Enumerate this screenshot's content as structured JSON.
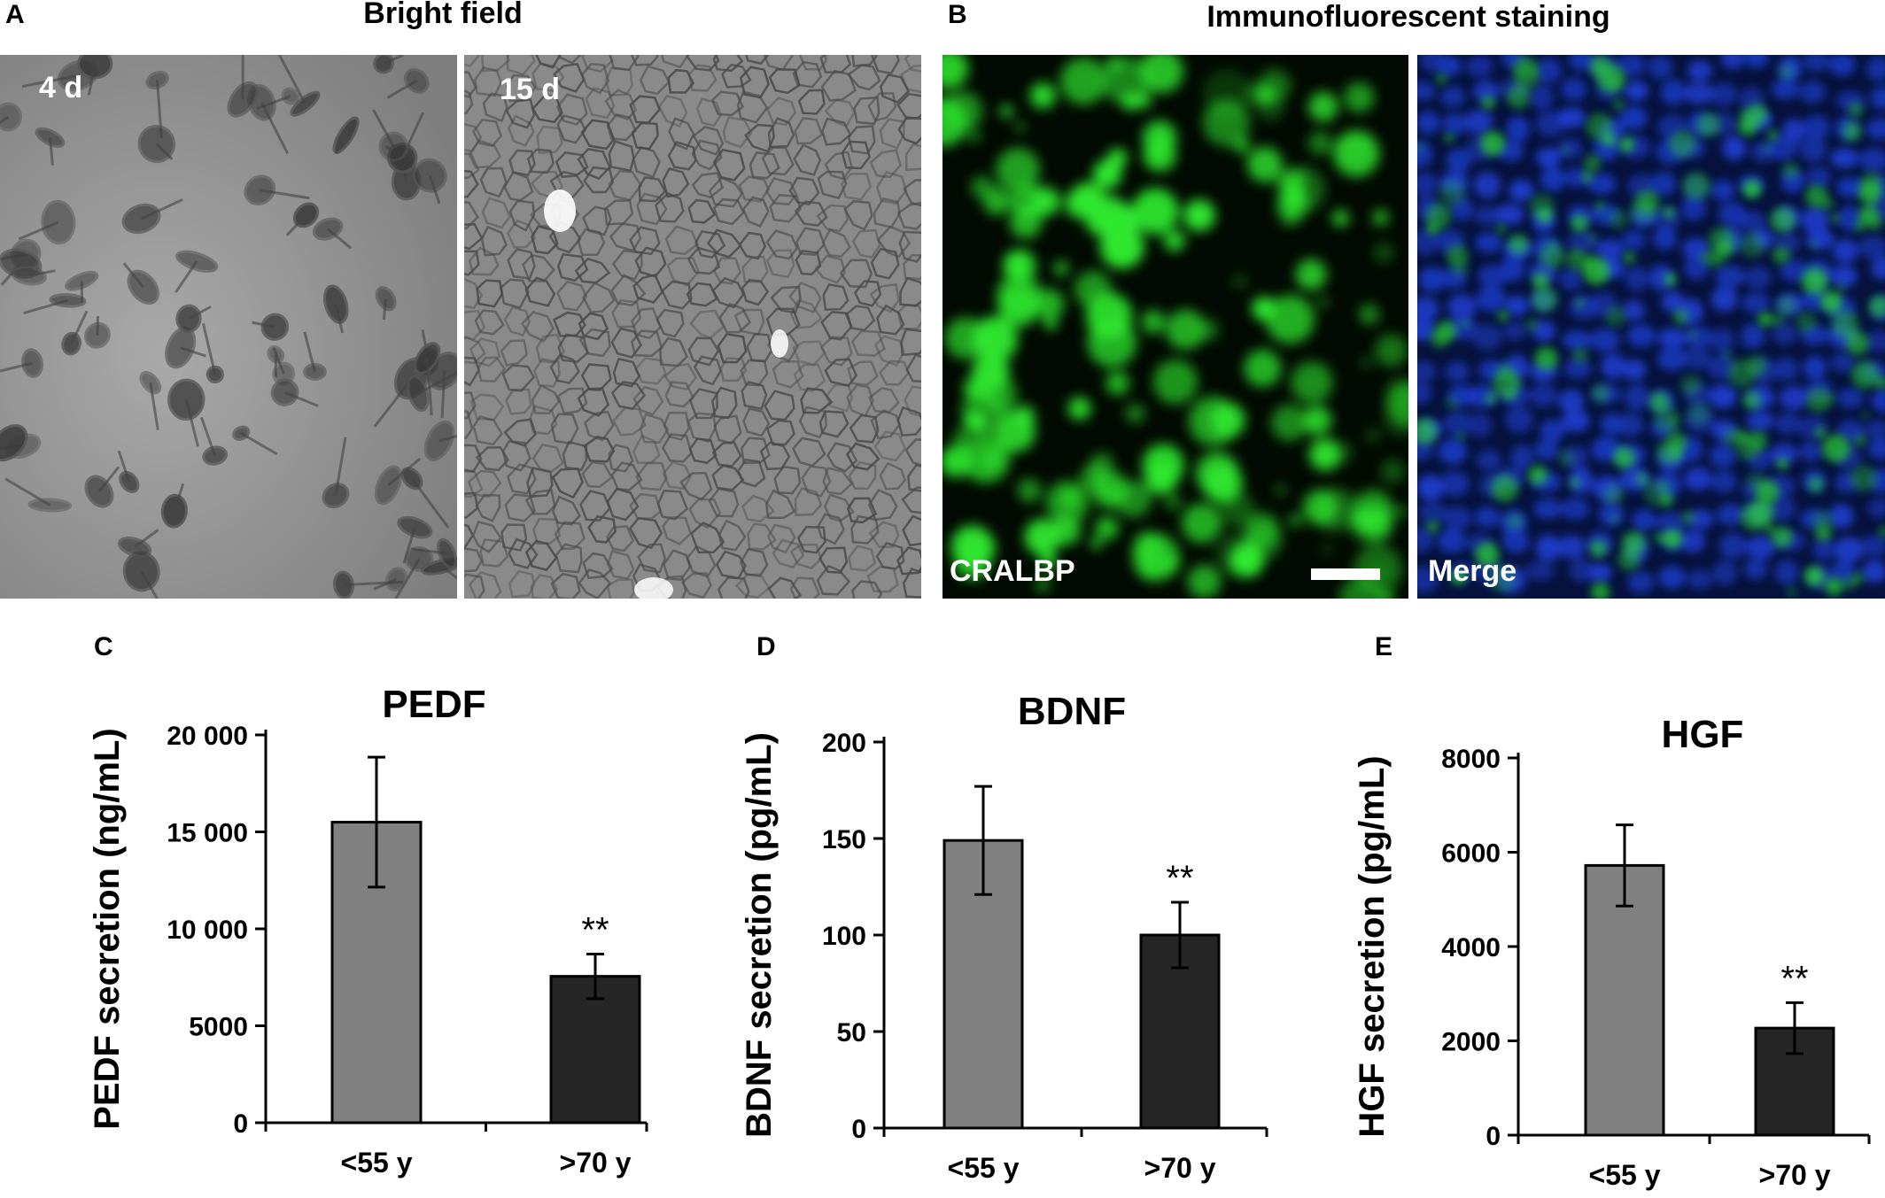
{
  "panelA": {
    "letter": "A",
    "heading": "Bright field",
    "left_tag": "4 d",
    "right_tag": "15 d"
  },
  "panelB": {
    "letter": "B",
    "heading": "Immunofluorescent staining",
    "left_tag": "CRALBP",
    "right_tag": "Merge"
  },
  "colors": {
    "young_bar": "#808080",
    "old_bar": "#262626",
    "fluorescence": "#2ee82e",
    "nuclei": "#1c3ccc"
  },
  "chart_data": [
    {
      "panel": "C",
      "type": "bar",
      "title": "PEDF",
      "ylabel": "PEDF secretion (ng/mL)",
      "categories": [
        "<55 y",
        ">70 y"
      ],
      "values": [
        15500,
        7550
      ],
      "errors": [
        3350,
        1150
      ],
      "significance": [
        "",
        "**"
      ],
      "ylim": [
        0,
        20000
      ],
      "yticks": [
        0,
        5000,
        10000,
        15000,
        20000
      ],
      "ytick_labels": [
        "0",
        "5000",
        "10 000",
        "15 000",
        "20 000"
      ],
      "grid": false
    },
    {
      "panel": "D",
      "type": "bar",
      "title": "BDNF",
      "ylabel": "BDNF secretion (pg/mL)",
      "categories": [
        "<55 y",
        ">70 y"
      ],
      "values": [
        149,
        100
      ],
      "errors": [
        28,
        17
      ],
      "significance": [
        "",
        "**"
      ],
      "ylim": [
        0,
        200
      ],
      "yticks": [
        0,
        50,
        100,
        150,
        200
      ],
      "ytick_labels": [
        "0",
        "50",
        "100",
        "150",
        "200"
      ],
      "grid": false
    },
    {
      "panel": "E",
      "type": "bar",
      "title": "HGF",
      "ylabel": "HGF secretion (pg/mL)",
      "categories": [
        "<55 y",
        ">70 y"
      ],
      "values": [
        5720,
        2270
      ],
      "errors": [
        860,
        540
      ],
      "significance": [
        "",
        "**"
      ],
      "ylim": [
        0,
        8000
      ],
      "yticks": [
        0,
        2000,
        4000,
        6000,
        8000
      ],
      "ytick_labels": [
        "0",
        "2000",
        "4000",
        "6000",
        "8000"
      ],
      "grid": false
    }
  ]
}
